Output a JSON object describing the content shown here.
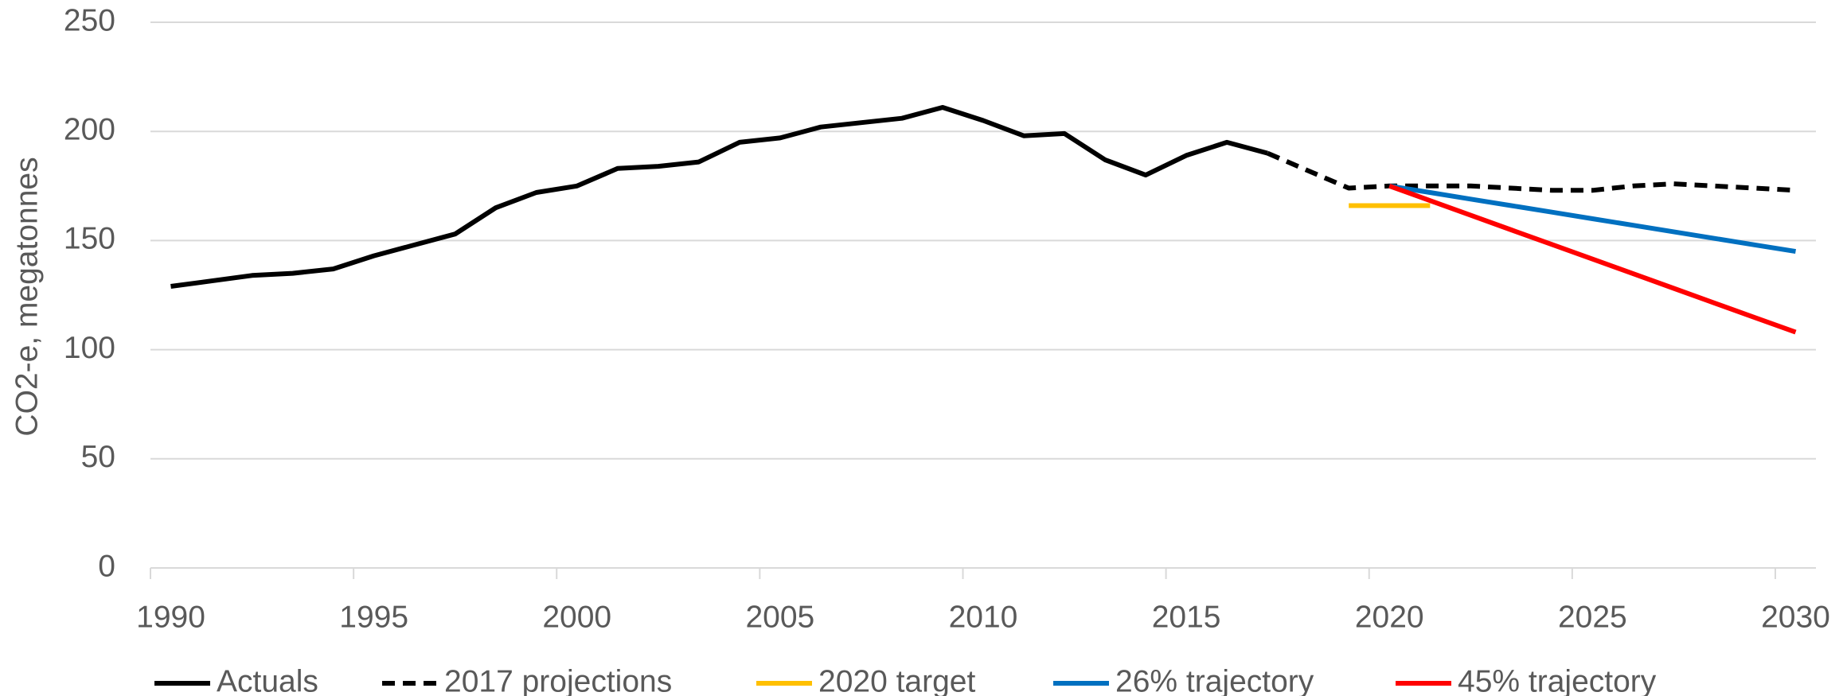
{
  "chart_data": {
    "type": "line",
    "ylabel": "CO2-e, megatonnes",
    "categories": [
      1990,
      null,
      null,
      null,
      null,
      1995,
      null,
      null,
      null,
      null,
      2000,
      null,
      null,
      null,
      null,
      2005,
      null,
      null,
      null,
      null,
      2010,
      null,
      null,
      null,
      null,
      2015,
      null,
      null,
      null,
      null,
      2020,
      null,
      null,
      null,
      null,
      2025,
      null,
      null,
      null,
      null,
      2030
    ],
    "series": [
      {
        "name": "Actuals",
        "color": "#000000",
        "dashed": false,
        "values": [
          129,
          131.5,
          134,
          135,
          137,
          143,
          148,
          153,
          165,
          172,
          175,
          183,
          184,
          186,
          195,
          197,
          202,
          204,
          206,
          211,
          205,
          198,
          199,
          187,
          180,
          189,
          195,
          190,
          null,
          null,
          null,
          null,
          null,
          null,
          null,
          null,
          null,
          null,
          null,
          null,
          null
        ]
      },
      {
        "name": "2017 projections",
        "color": "#000000",
        "dashed": true,
        "values": [
          null,
          null,
          null,
          null,
          null,
          null,
          null,
          null,
          null,
          null,
          null,
          null,
          null,
          null,
          null,
          null,
          null,
          null,
          null,
          null,
          null,
          null,
          null,
          null,
          null,
          null,
          null,
          190,
          182,
          174,
          175,
          175,
          175,
          174,
          173,
          173,
          175,
          176,
          175,
          174,
          173
        ]
      },
      {
        "name": "2020 target",
        "color": "#ffc000",
        "dashed": false,
        "values": [
          null,
          null,
          null,
          null,
          null,
          null,
          null,
          null,
          null,
          null,
          null,
          null,
          null,
          null,
          null,
          null,
          null,
          null,
          null,
          null,
          null,
          null,
          null,
          null,
          null,
          null,
          null,
          null,
          null,
          166,
          166,
          166,
          null,
          null,
          null,
          null,
          null,
          null,
          null,
          null,
          null
        ]
      },
      {
        "name": "26% trajectory",
        "color": "#0070c0",
        "dashed": false,
        "values": [
          null,
          null,
          null,
          null,
          null,
          null,
          null,
          null,
          null,
          null,
          null,
          null,
          null,
          null,
          null,
          null,
          null,
          null,
          null,
          null,
          null,
          null,
          null,
          null,
          null,
          null,
          null,
          null,
          null,
          null,
          175,
          172,
          169,
          166,
          163,
          160,
          157,
          154,
          151,
          148,
          145
        ]
      },
      {
        "name": "45% trajectory",
        "color": "#ff0000",
        "dashed": false,
        "values": [
          null,
          null,
          null,
          null,
          null,
          null,
          null,
          null,
          null,
          null,
          null,
          null,
          null,
          null,
          null,
          null,
          null,
          null,
          null,
          null,
          null,
          null,
          null,
          null,
          null,
          null,
          null,
          null,
          null,
          null,
          175,
          168.3,
          161.6,
          154.9,
          148.2,
          141.5,
          134.8,
          128.1,
          121.4,
          114.7,
          108
        ]
      }
    ],
    "ylim": [
      0,
      250
    ],
    "yticks": [
      0,
      50,
      100,
      150,
      200,
      250
    ],
    "grid": true,
    "legend": "bottom"
  }
}
